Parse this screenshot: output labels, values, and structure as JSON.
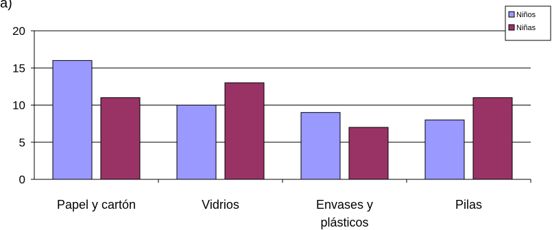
{
  "corner_label": "a)",
  "chart_data": {
    "type": "bar",
    "title": "",
    "xlabel": "",
    "ylabel": "",
    "categories": [
      "Papel y cartón",
      "Vidrios",
      "Envases y plásticos",
      "Pilas"
    ],
    "category_lines": [
      [
        "Papel y cartón"
      ],
      [
        "Vidrios"
      ],
      [
        "Envases y",
        "plásticos"
      ],
      [
        "Pilas"
      ]
    ],
    "yticks": [
      "0",
      "5",
      "10",
      "15",
      "20"
    ],
    "ylim": [
      0,
      20
    ],
    "grid": true,
    "legend_position": "top-right",
    "series": [
      {
        "name": "Niños",
        "values": [
          16,
          10,
          9,
          8
        ],
        "color": "#9999FF"
      },
      {
        "name": "Niñas",
        "values": [
          11,
          13,
          7,
          11
        ],
        "color": "#993366"
      }
    ]
  }
}
